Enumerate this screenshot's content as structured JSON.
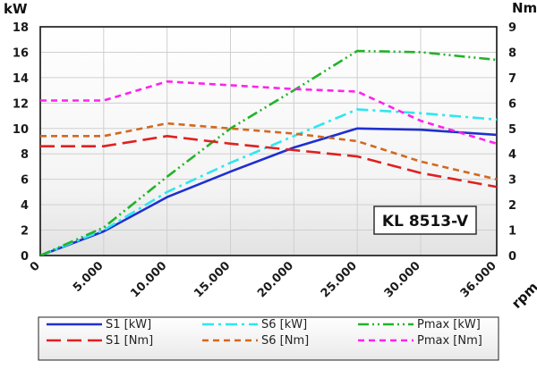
{
  "chart_data": {
    "type": "line",
    "left_unit": "kW",
    "right_unit": "Nm",
    "x_unit": "rpm",
    "model_label": "KL 8513-V",
    "xlim": [
      0,
      36000
    ],
    "ylim_left": [
      0,
      18
    ],
    "ylim_right": [
      0,
      9
    ],
    "x_ticks": [
      0,
      5000,
      10000,
      15000,
      20000,
      25000,
      30000,
      36000
    ],
    "x_tick_labels": [
      "0",
      "5.000",
      "10.000",
      "15.000",
      "20.000",
      "25.000",
      "30.000",
      "36.000"
    ],
    "left_ticks": [
      0,
      2,
      4,
      6,
      8,
      10,
      12,
      14,
      16,
      18
    ],
    "left_tick_labels": [
      "0",
      "2",
      "4",
      "6",
      "8",
      "10",
      "12",
      "14",
      "16",
      "18"
    ],
    "right_ticks": [
      0,
      1,
      2,
      3,
      4,
      5,
      6,
      7,
      8,
      9
    ],
    "right_tick_labels": [
      "0",
      "1",
      "2",
      "3",
      "4",
      "5",
      "6",
      "7",
      "8",
      "9"
    ],
    "grid": true,
    "legend_position": "bottom",
    "series": [
      {
        "name": "S1 [kW]",
        "axis": "left",
        "color": "#1f2fd0",
        "style": "solid",
        "x": [
          0,
          5000,
          10000,
          15000,
          20000,
          25000,
          30000,
          36000
        ],
        "y": [
          0,
          1.9,
          4.6,
          6.6,
          8.5,
          10.0,
          9.9,
          9.5
        ]
      },
      {
        "name": "S6 [kW]",
        "axis": "left",
        "color": "#2ee6f0",
        "style": "dashdot",
        "x": [
          0,
          5000,
          10000,
          15000,
          20000,
          25000,
          30000,
          36000
        ],
        "y": [
          0,
          2.0,
          5.0,
          7.3,
          9.4,
          11.5,
          11.2,
          10.7
        ]
      },
      {
        "name": "Pmax [kW]",
        "axis": "left",
        "color": "#22b32a",
        "style": "dashdotdot",
        "x": [
          0,
          5000,
          10000,
          15000,
          20000,
          25000,
          30000,
          36000
        ],
        "y": [
          0,
          2.2,
          6.2,
          10.0,
          13.0,
          16.1,
          16.0,
          15.4
        ]
      },
      {
        "name": "S1 [Nm]",
        "axis": "right",
        "color": "#e02020",
        "style": "longdash",
        "x": [
          0,
          5000,
          10000,
          15000,
          20000,
          25000,
          30000,
          36000
        ],
        "y": [
          4.3,
          4.3,
          4.7,
          4.4,
          4.15,
          3.9,
          3.25,
          2.7
        ]
      },
      {
        "name": "S6 [Nm]",
        "axis": "right",
        "color": "#d2691e",
        "style": "shortdash",
        "x": [
          0,
          5000,
          10000,
          15000,
          20000,
          25000,
          30000,
          36000
        ],
        "y": [
          4.7,
          4.7,
          5.2,
          5.0,
          4.8,
          4.5,
          3.7,
          3.0
        ]
      },
      {
        "name": "Pmax [Nm]",
        "axis": "right",
        "color": "#ff22ee",
        "style": "shortdash",
        "x": [
          0,
          5000,
          10000,
          15000,
          20000,
          25000,
          30000,
          36000
        ],
        "y": [
          6.1,
          6.1,
          6.85,
          6.7,
          6.55,
          6.45,
          5.3,
          4.4
        ]
      }
    ]
  }
}
